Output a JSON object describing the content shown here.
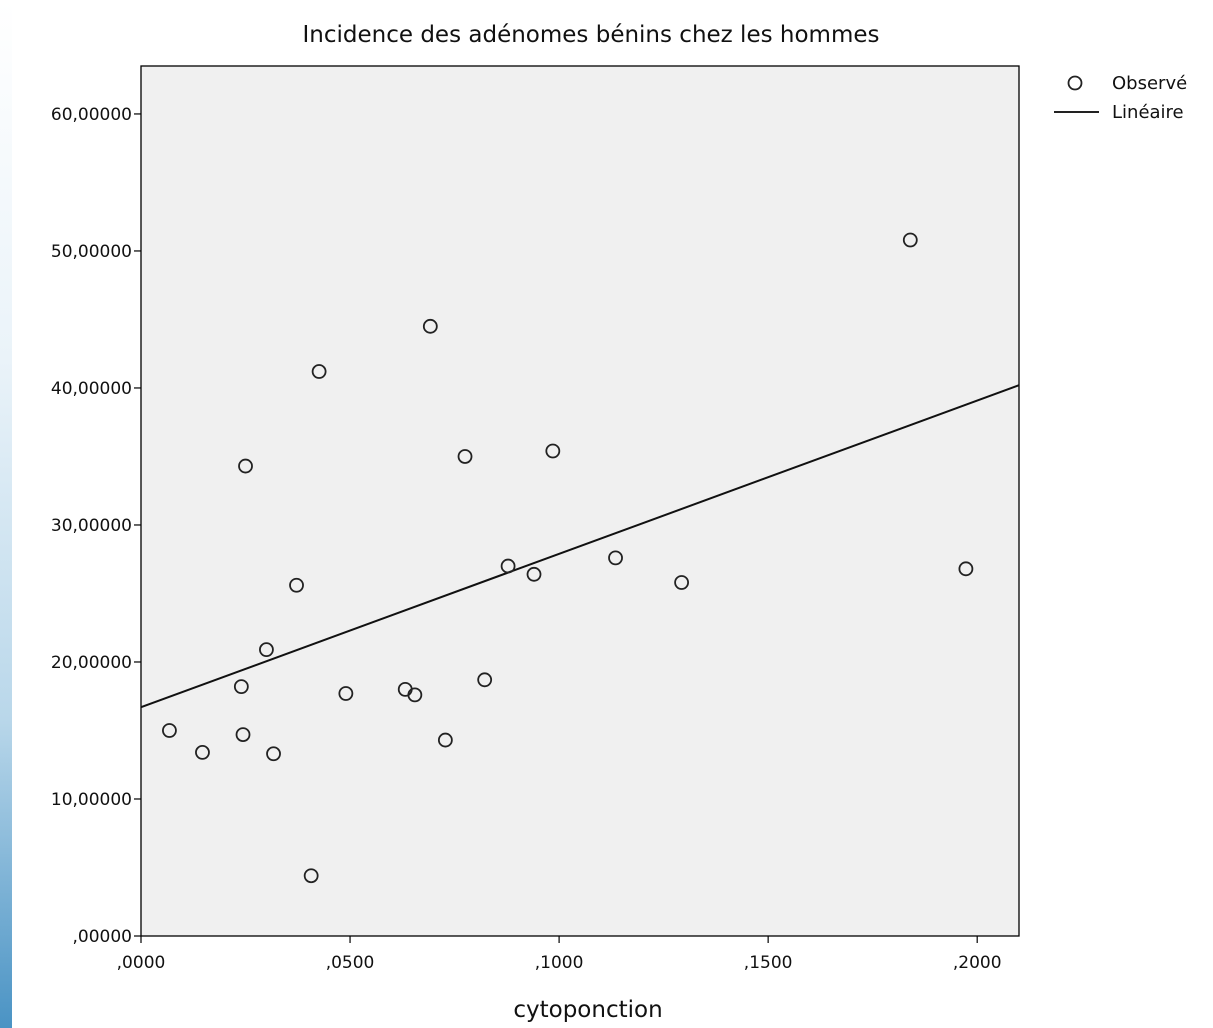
{
  "chart_data": {
    "type": "scatter",
    "title": "Incidence des adénomes  bénins chez les hommes",
    "xlabel": "cytoponction",
    "ylabel": "",
    "xlim": [
      0,
      0.21
    ],
    "ylim": [
      0,
      63.5
    ],
    "x_ticks": [
      0,
      0.05,
      0.1,
      0.15,
      0.2
    ],
    "x_tick_labels": [
      ",0000",
      ",0500",
      ",1000",
      ",1500",
      ",2000"
    ],
    "y_ticks": [
      0,
      10,
      20,
      30,
      40,
      50,
      60
    ],
    "y_tick_labels": [
      ",00000",
      "10,00000",
      "20,00000",
      "30,00000",
      "40,00000",
      "50,00000",
      "60,00000"
    ],
    "grid": false,
    "plot_background": "#f0f0f0",
    "legend_position": "top-right",
    "legend": [
      {
        "label": "Observé",
        "marker": "circle"
      },
      {
        "label": "Linéaire",
        "marker": "line"
      }
    ],
    "series": [
      {
        "name": "Observé",
        "type": "scatter",
        "points": [
          {
            "x": 0.0068,
            "y": 15.0
          },
          {
            "x": 0.0147,
            "y": 13.4
          },
          {
            "x": 0.024,
            "y": 18.2
          },
          {
            "x": 0.0244,
            "y": 14.7
          },
          {
            "x": 0.025,
            "y": 34.3
          },
          {
            "x": 0.03,
            "y": 20.9
          },
          {
            "x": 0.0317,
            "y": 13.3
          },
          {
            "x": 0.0372,
            "y": 25.6
          },
          {
            "x": 0.0407,
            "y": 4.4
          },
          {
            "x": 0.0426,
            "y": 41.2
          },
          {
            "x": 0.049,
            "y": 17.7
          },
          {
            "x": 0.0632,
            "y": 18.0
          },
          {
            "x": 0.0655,
            "y": 17.6
          },
          {
            "x": 0.0692,
            "y": 44.5
          },
          {
            "x": 0.0728,
            "y": 14.3
          },
          {
            "x": 0.0775,
            "y": 35.0
          },
          {
            "x": 0.0822,
            "y": 18.7
          },
          {
            "x": 0.0878,
            "y": 27.0
          },
          {
            "x": 0.094,
            "y": 26.4
          },
          {
            "x": 0.0985,
            "y": 35.4
          },
          {
            "x": 0.1135,
            "y": 27.6
          },
          {
            "x": 0.1293,
            "y": 25.8
          },
          {
            "x": 0.184,
            "y": 50.8
          },
          {
            "x": 0.1973,
            "y": 26.8
          }
        ]
      },
      {
        "name": "Linéaire",
        "type": "line",
        "points": [
          {
            "x": 0.0,
            "y": 16.7
          },
          {
            "x": 0.21,
            "y": 40.2
          }
        ]
      }
    ]
  }
}
